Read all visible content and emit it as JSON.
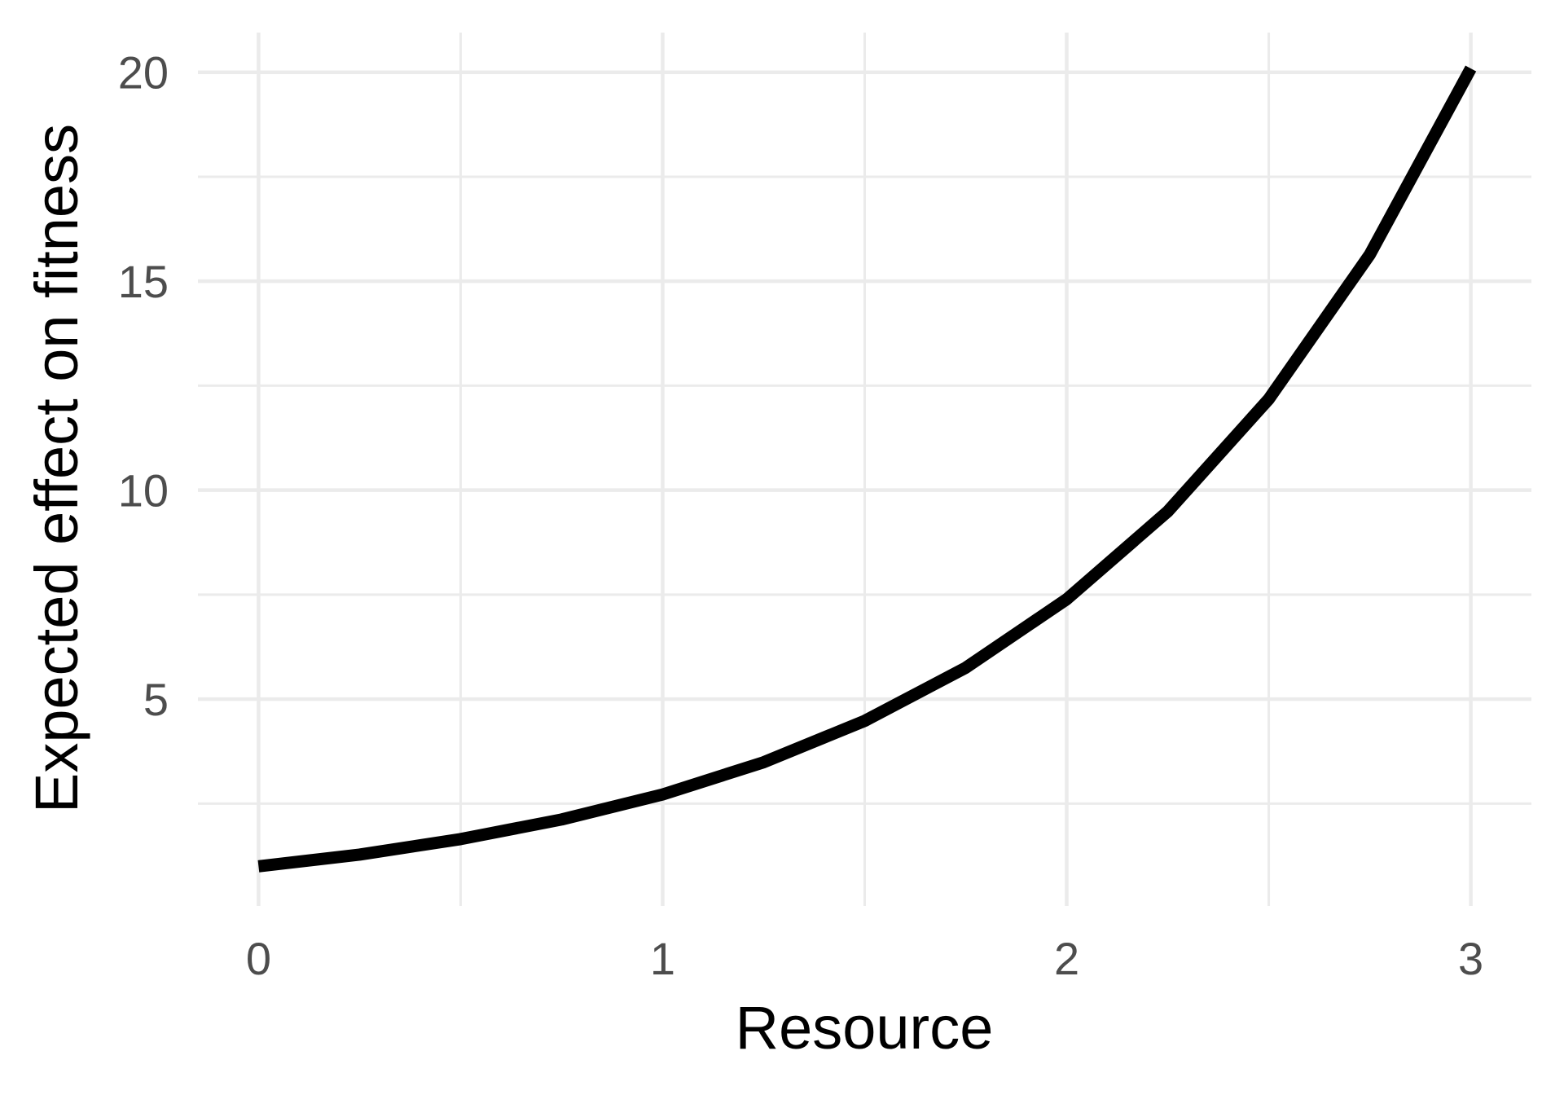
{
  "chart_data": {
    "type": "line",
    "title": "",
    "xlabel": "Resource",
    "ylabel": "Expected effect on fitness",
    "xlim": [
      -0.15,
      3.15
    ],
    "ylim": [
      0.05,
      20.95
    ],
    "x_ticks": [
      0,
      1,
      2,
      3
    ],
    "x_tick_labels": [
      "0",
      "1",
      "2",
      "3"
    ],
    "x_minor_ticks": [
      0.5,
      1.5,
      2.5
    ],
    "y_ticks": [
      5,
      10,
      15,
      20
    ],
    "y_tick_labels": [
      "5",
      "10",
      "15",
      "20"
    ],
    "y_minor_ticks": [
      2.5,
      7.5,
      12.5,
      17.5
    ],
    "grid": true,
    "legend": "none",
    "line_color": "#000000",
    "grid_color": "#ebebeb",
    "series": [
      {
        "x": [
          0,
          0.25,
          0.5,
          0.75,
          1,
          1.25,
          1.5,
          1.75,
          2,
          2.25,
          2.5,
          2.75,
          3
        ],
        "y": [
          1.0,
          1.28,
          1.65,
          2.12,
          2.72,
          3.49,
          4.48,
          5.75,
          7.39,
          9.49,
          12.18,
          15.64,
          20.09
        ]
      }
    ]
  }
}
